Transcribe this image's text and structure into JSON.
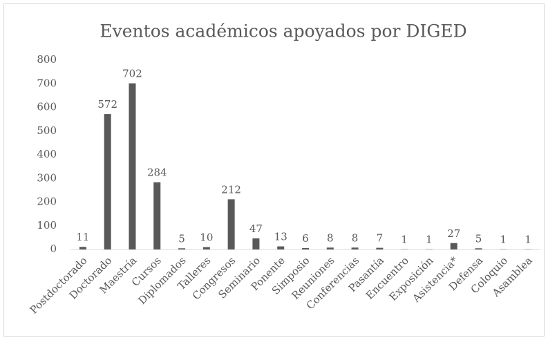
{
  "chart_data": {
    "type": "bar",
    "title": "Eventos académicos  apoyados por DIGED",
    "categories": [
      "Postdoctorado",
      "Doctorado",
      "Maestría",
      "Cursos",
      "Diplomados",
      "Talleres",
      "Congresos",
      "Seminario",
      "Ponente",
      "Simposio",
      "Reuniones",
      "Conferencias",
      "Pasantía",
      "Encuentro",
      "Exposición",
      "Asistencia*",
      "Defensa",
      "Coloquio",
      "Asamblea"
    ],
    "values": [
      11,
      572,
      702,
      284,
      5,
      10,
      212,
      47,
      13,
      6,
      8,
      8,
      7,
      1,
      1,
      27,
      5,
      1,
      1
    ],
    "color": "#595959",
    "ylim": [
      0,
      800
    ],
    "yticks": [
      0,
      100,
      200,
      300,
      400,
      500,
      600,
      700,
      800
    ],
    "grid": false
  }
}
